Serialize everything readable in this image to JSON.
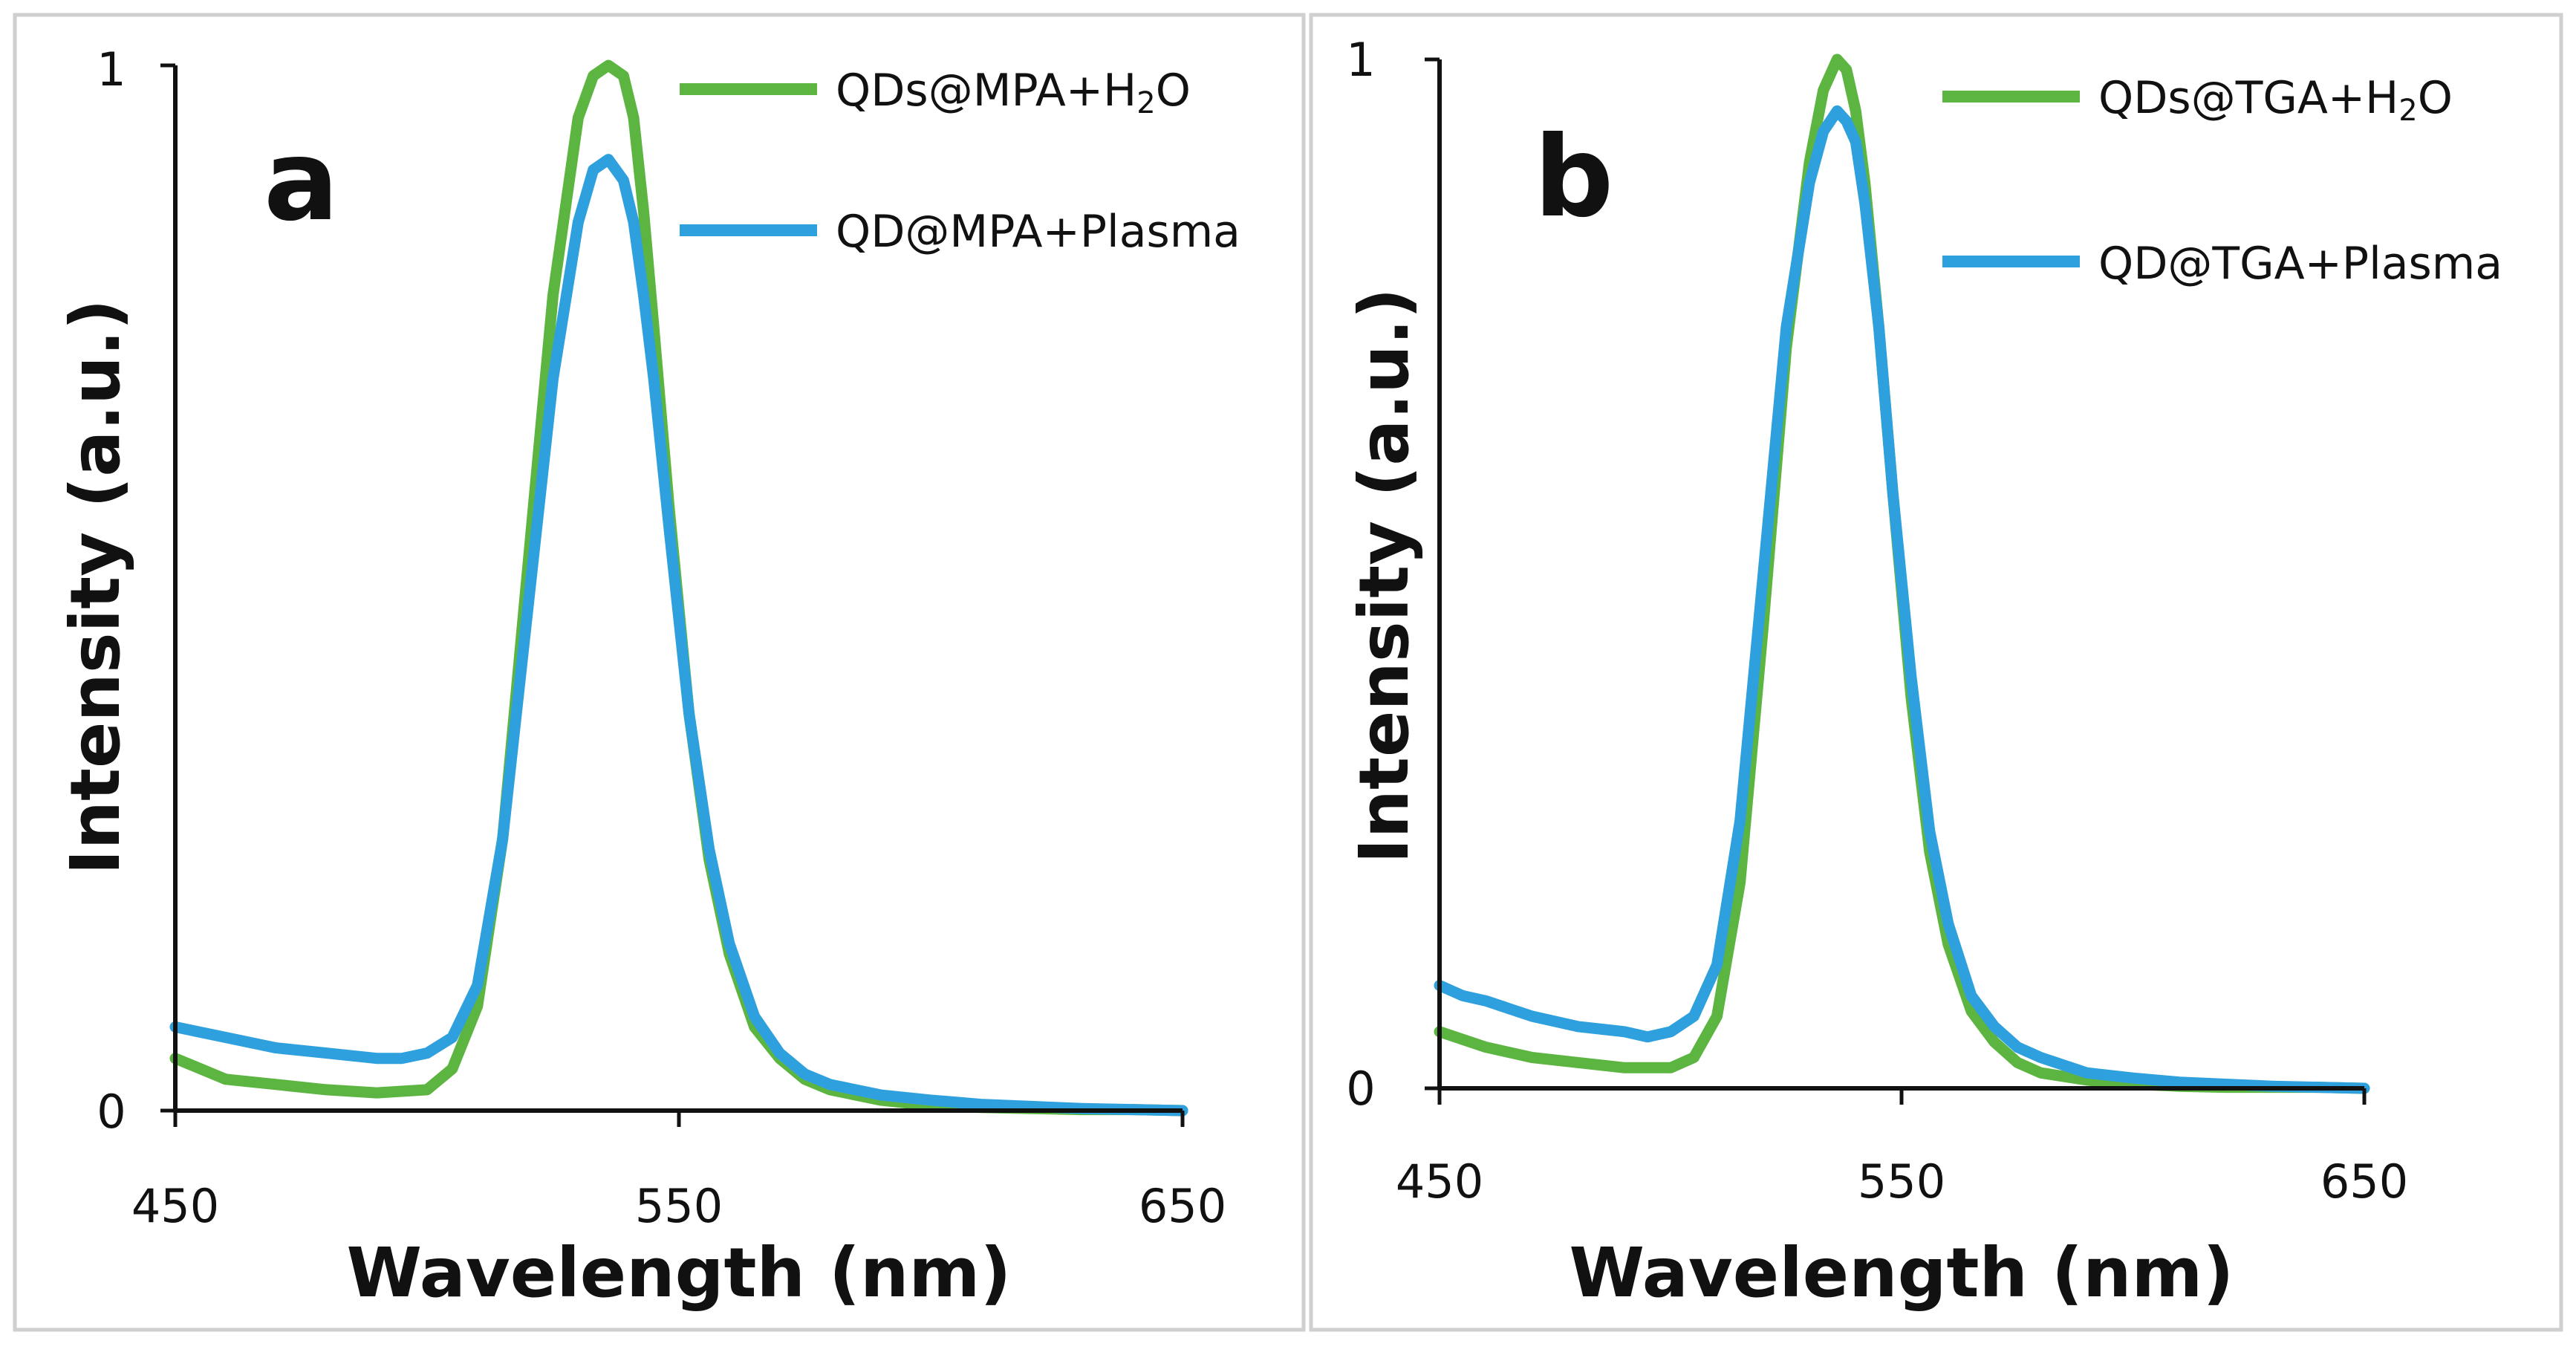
{
  "colors": {
    "h2o_series": "#5cb540",
    "plasma_series": "#2fa0de",
    "axis": "#111111",
    "frame": "#cfcfcf"
  },
  "chart_data": [
    {
      "type": "line",
      "panel_label": "a",
      "xlabel": "Wavelength (nm)",
      "ylabel": "Intensity (a.u.)",
      "xlim": [
        450,
        650
      ],
      "ylim": [
        0,
        1
      ],
      "x_tick_labels": [
        "450",
        "550",
        "650"
      ],
      "y_tick_labels": [
        "0",
        "1"
      ],
      "legend": {
        "position": "top-right",
        "entries": [
          {
            "text": "QDs@MPA+H",
            "sub": "2",
            "suffix": "O",
            "color": "#5cb540"
          },
          {
            "text": "QD@MPA+Plasma",
            "sub": "",
            "suffix": "",
            "color": "#2fa0de"
          }
        ]
      },
      "series": [
        {
          "name": "QDs@MPA+H2O",
          "color": "#5cb540",
          "x": [
            450,
            460,
            470,
            480,
            490,
            500,
            505,
            510,
            515,
            520,
            525,
            530,
            533,
            536,
            539,
            541,
            543,
            545,
            548,
            552,
            556,
            560,
            565,
            570,
            575,
            580,
            590,
            600,
            610,
            620,
            630,
            640,
            650
          ],
          "y": [
            0.05,
            0.03,
            0.025,
            0.02,
            0.017,
            0.02,
            0.04,
            0.1,
            0.26,
            0.52,
            0.78,
            0.95,
            0.99,
            1.0,
            0.99,
            0.95,
            0.86,
            0.75,
            0.58,
            0.38,
            0.24,
            0.15,
            0.08,
            0.05,
            0.03,
            0.02,
            0.01,
            0.005,
            0.003,
            0.002,
            0.001,
            0.001,
            0.0
          ]
        },
        {
          "name": "QD@MPA+Plasma",
          "color": "#2fa0de",
          "x": [
            450,
            455,
            460,
            470,
            480,
            490,
            495,
            500,
            505,
            510,
            515,
            520,
            525,
            530,
            533,
            536,
            539,
            541,
            543,
            545,
            548,
            552,
            556,
            560,
            565,
            570,
            575,
            580,
            590,
            600,
            610,
            620,
            630,
            640,
            650
          ],
          "y": [
            0.08,
            0.075,
            0.07,
            0.06,
            0.055,
            0.05,
            0.05,
            0.055,
            0.07,
            0.12,
            0.26,
            0.48,
            0.7,
            0.85,
            0.9,
            0.91,
            0.89,
            0.85,
            0.78,
            0.7,
            0.56,
            0.38,
            0.25,
            0.16,
            0.09,
            0.055,
            0.035,
            0.025,
            0.015,
            0.01,
            0.006,
            0.004,
            0.002,
            0.001,
            0.0
          ]
        }
      ]
    },
    {
      "type": "line",
      "panel_label": "b",
      "xlabel": "Wavelength (nm)",
      "ylabel": "Intensity (a.u.)",
      "xlim": [
        450,
        650
      ],
      "ylim": [
        0,
        1
      ],
      "x_tick_labels": [
        "450",
        "550",
        "650"
      ],
      "y_tick_labels": [
        "0",
        "1"
      ],
      "legend": {
        "position": "top-right",
        "entries": [
          {
            "text": "QDs@TGA+H",
            "sub": "2",
            "suffix": "O",
            "color": "#5cb540"
          },
          {
            "text": "QD@TGA+Plasma",
            "sub": "",
            "suffix": "",
            "color": "#2fa0de"
          }
        ]
      },
      "series": [
        {
          "name": "QDs@TGA+H2O",
          "color": "#5cb540",
          "x": [
            450,
            460,
            470,
            480,
            490,
            500,
            505,
            510,
            515,
            520,
            525,
            530,
            533,
            536,
            538,
            540,
            542,
            545,
            548,
            552,
            556,
            560,
            565,
            570,
            575,
            580,
            590,
            600,
            610,
            620,
            630,
            640,
            650
          ],
          "y": [
            0.055,
            0.04,
            0.03,
            0.025,
            0.02,
            0.02,
            0.03,
            0.07,
            0.2,
            0.45,
            0.72,
            0.9,
            0.97,
            1.0,
            0.99,
            0.95,
            0.88,
            0.74,
            0.58,
            0.38,
            0.23,
            0.14,
            0.075,
            0.045,
            0.025,
            0.015,
            0.008,
            0.004,
            0.002,
            0.001,
            0.001,
            0.001,
            0.0
          ]
        },
        {
          "name": "QD@TGA+Plasma",
          "color": "#2fa0de",
          "x": [
            450,
            455,
            460,
            470,
            480,
            490,
            495,
            500,
            505,
            510,
            515,
            520,
            525,
            530,
            533,
            536,
            538,
            540,
            542,
            545,
            548,
            552,
            556,
            560,
            565,
            570,
            575,
            580,
            590,
            600,
            610,
            620,
            630,
            640,
            650
          ],
          "y": [
            0.1,
            0.09,
            0.085,
            0.07,
            0.06,
            0.055,
            0.05,
            0.055,
            0.07,
            0.12,
            0.26,
            0.5,
            0.74,
            0.88,
            0.93,
            0.95,
            0.94,
            0.92,
            0.86,
            0.74,
            0.58,
            0.4,
            0.25,
            0.16,
            0.09,
            0.06,
            0.04,
            0.03,
            0.015,
            0.01,
            0.006,
            0.004,
            0.002,
            0.001,
            0.0
          ]
        }
      ]
    }
  ]
}
